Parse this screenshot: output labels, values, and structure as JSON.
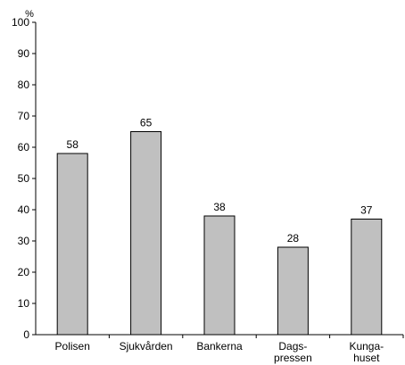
{
  "chart_data": {
    "type": "bar",
    "categories": [
      [
        "Polisen"
      ],
      [
        "Sjukvården"
      ],
      [
        "Bankerna"
      ],
      [
        "Dags-",
        "pressen"
      ],
      [
        "Kunga-",
        "huset"
      ]
    ],
    "values": [
      58,
      65,
      38,
      28,
      37
    ],
    "data_labels": [
      "58",
      "65",
      "38",
      "28",
      "37"
    ],
    "ylabel": "%",
    "ylim": [
      0,
      100
    ],
    "yticks": [
      0,
      10,
      20,
      30,
      40,
      50,
      60,
      70,
      80,
      90,
      100
    ],
    "grid": false,
    "colors": {
      "bar_fill": "#c0c0c0",
      "bar_stroke": "#000000",
      "axis": "#000000"
    }
  }
}
